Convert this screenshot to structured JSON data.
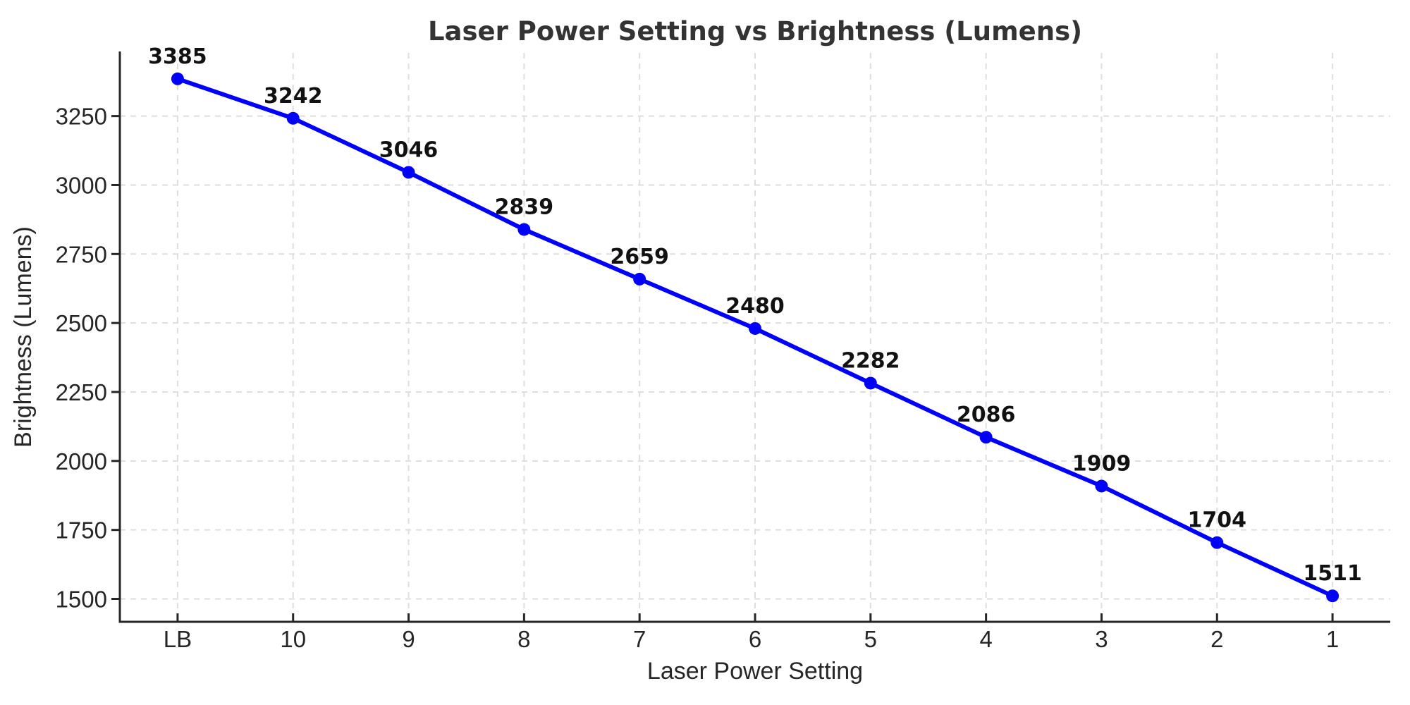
{
  "chart_data": {
    "type": "line",
    "title": "Laser Power Setting vs Brightness (Lumens)",
    "xlabel": "Laser Power Setting",
    "ylabel": "Brightness (Lumens)",
    "categories": [
      "LB",
      "10",
      "9",
      "8",
      "7",
      "6",
      "5",
      "4",
      "3",
      "2",
      "1"
    ],
    "values": [
      3385,
      3242,
      3046,
      2839,
      2659,
      2480,
      2282,
      2086,
      1909,
      1704,
      1511
    ],
    "point_labels": [
      "3385",
      "3242",
      "3046",
      "2839",
      "2659",
      "2480",
      "2282",
      "2086",
      "1909",
      "1704",
      "1511"
    ],
    "yticks": [
      1500,
      1750,
      2000,
      2250,
      2500,
      2750,
      3000,
      3250
    ],
    "ylim": [
      1417,
      3479
    ],
    "grid": true,
    "grid_style": "dashed",
    "legend_position": "none",
    "colors": {
      "line": "#0000FF",
      "marker": "#0000FF",
      "grid": "#dedede",
      "axis": "#262626",
      "tick_text": "#262626",
      "axis_label_text": "#262626",
      "title_text": "#333333",
      "point_label_text": "#111111",
      "background": "#ffffff"
    }
  }
}
